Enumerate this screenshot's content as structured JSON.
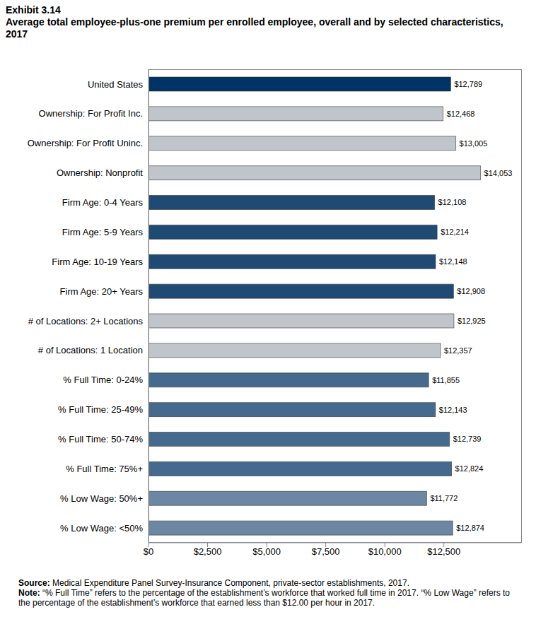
{
  "chart_data": {
    "type": "bar",
    "orientation": "horizontal",
    "title": "Exhibit 3.14",
    "subtitle": "Average total employee-plus-one premium per enrolled employee, overall and by selected characteristics, 2017",
    "categories": [
      "United States",
      "Ownership: For Profit Inc.",
      "Ownership: For Profit Uninc.",
      "Ownership: Nonprofit",
      "Firm Age: 0-4 Years",
      "Firm Age: 5-9 Years",
      "Firm Age: 10-19 Years",
      "Firm Age: 20+ Years",
      "# of Locations: 2+ Locations",
      "# of Locations: 1 Location",
      "% Full Time: 0-24%",
      "% Full Time: 25-49%",
      "% Full Time: 50-74%",
      "% Full Time: 75%+",
      "% Low Wage: 50%+",
      "% Low Wage: <50%"
    ],
    "values": [
      12789,
      12468,
      13005,
      14053,
      12108,
      12214,
      12148,
      12908,
      12925,
      12357,
      11855,
      12143,
      12739,
      12824,
      11772,
      12874
    ],
    "value_labels": [
      "$12,789",
      "$12,468",
      "$13,005",
      "$14,053",
      "$12,108",
      "$12,214",
      "$12,148",
      "$12,908",
      "$12,925",
      "$12,357",
      "$11,855",
      "$12,143",
      "$12,739",
      "$12,824",
      "$11,772",
      "$12,874"
    ],
    "colors": [
      "#003366",
      "#c0c5cc",
      "#c0c5cc",
      "#c0c5cc",
      "#1f4a73",
      "#1f4a73",
      "#1f4a73",
      "#1f4a73",
      "#c0c5cc",
      "#c0c5cc",
      "#456a8e",
      "#456a8e",
      "#456a8e",
      "#456a8e",
      "#6b87a3",
      "#6b87a3"
    ],
    "xlim": [
      0,
      15800
    ],
    "xticks": [
      {
        "value": 0,
        "label": "$0"
      },
      {
        "value": 2500,
        "label": "$2,500"
      },
      {
        "value": 5000,
        "label": "$5,000"
      },
      {
        "value": 7500,
        "label": "$7,500"
      },
      {
        "value": 10000,
        "label": "$10,000"
      },
      {
        "value": 12500,
        "label": "$12,500"
      }
    ],
    "data_labels": true,
    "grid": false,
    "source": {
      "label": "Source:",
      "text": "Medical Expenditure Panel Survey-Insurance Component, private-sector establishments, 2017."
    },
    "note": {
      "label": "Note:",
      "text": "“% Full Time” refers to the percentage of the establishment’s workforce that worked full time in 2017. “% Low Wage” refers to the percentage of the establishment’s workforce that earned less than $12.00 per hour in 2017."
    }
  }
}
